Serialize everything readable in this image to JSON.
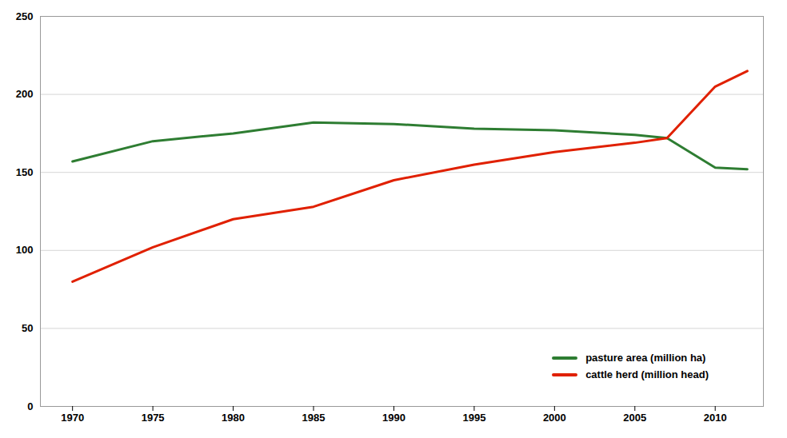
{
  "chart_data": {
    "type": "line",
    "x": [
      1970,
      1975,
      1980,
      1985,
      1990,
      1995,
      2000,
      2005,
      2007,
      2010,
      2012
    ],
    "series": [
      {
        "name": "pasture area (million ha)",
        "color": "#2e7d32",
        "values": [
          157,
          170,
          175,
          182,
          181,
          178,
          177,
          174,
          172,
          153,
          152
        ]
      },
      {
        "name": "cattle herd (million head)",
        "color": "#e02000",
        "values": [
          80,
          102,
          120,
          128,
          145,
          155,
          163,
          169,
          172,
          205,
          215
        ]
      }
    ],
    "xlim": [
      1968,
      2013
    ],
    "xticks": [
      1970,
      1975,
      1980,
      1985,
      1990,
      1995,
      2000,
      2005,
      2010
    ],
    "ylim": [
      0,
      250
    ],
    "yticks": [
      0,
      50,
      100,
      150,
      200,
      250
    ],
    "grid": true,
    "legend": "lower right"
  }
}
